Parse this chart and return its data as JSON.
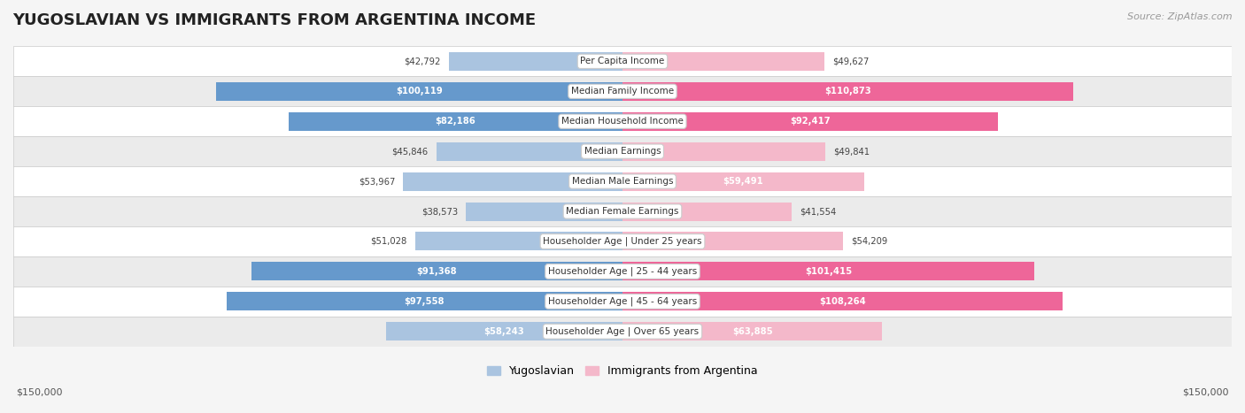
{
  "title": "YUGOSLAVIAN VS IMMIGRANTS FROM ARGENTINA INCOME",
  "source": "Source: ZipAtlas.com",
  "categories": [
    "Per Capita Income",
    "Median Family Income",
    "Median Household Income",
    "Median Earnings",
    "Median Male Earnings",
    "Median Female Earnings",
    "Householder Age | Under 25 years",
    "Householder Age | 25 - 44 years",
    "Householder Age | 45 - 64 years",
    "Householder Age | Over 65 years"
  ],
  "yugoslav_values": [
    42792,
    100119,
    82186,
    45846,
    53967,
    38573,
    51028,
    91368,
    97558,
    58243
  ],
  "argentina_values": [
    49627,
    110873,
    92417,
    49841,
    59491,
    41554,
    54209,
    101415,
    108264,
    63885
  ],
  "yugoslav_labels": [
    "$42,792",
    "$100,119",
    "$82,186",
    "$45,846",
    "$53,967",
    "$38,573",
    "$51,028",
    "$91,368",
    "$97,558",
    "$58,243"
  ],
  "argentina_labels": [
    "$49,627",
    "$110,873",
    "$92,417",
    "$49,841",
    "$59,491",
    "$41,554",
    "$54,209",
    "$101,415",
    "$108,264",
    "$63,885"
  ],
  "yugoslav_color_light": "#aac4e0",
  "yugoslav_color_dark": "#6699cc",
  "argentina_color_light": "#f4b8ca",
  "argentina_color_dark": "#ee6699",
  "inside_threshold": 55000,
  "max_value": 150000,
  "bar_height": 0.62,
  "background_color": "#f5f5f5",
  "row_colors": [
    "#ffffff",
    "#ebebeb"
  ],
  "legend_yugoslav": "Yugoslavian",
  "legend_argentina": "Immigrants from Argentina",
  "xlabel_left": "$150,000",
  "xlabel_right": "$150,000"
}
